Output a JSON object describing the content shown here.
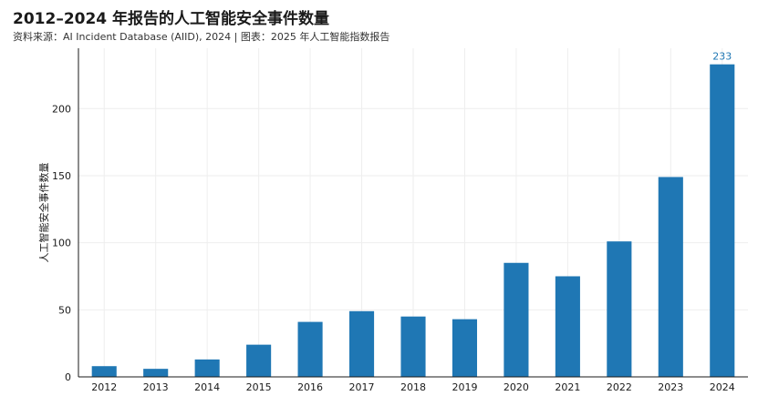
{
  "title": "2012–2024 年报告的人工智能安全事件数量",
  "subtitle": "资料来源：AI Incident Database (AIID), 2024 | 图表：2025 年人工智能指数报告",
  "chart_data": {
    "type": "bar",
    "categories": [
      "2012",
      "2013",
      "2014",
      "2015",
      "2016",
      "2017",
      "2018",
      "2019",
      "2020",
      "2021",
      "2022",
      "2023",
      "2024"
    ],
    "values": [
      8,
      6,
      13,
      24,
      41,
      49,
      45,
      43,
      85,
      75,
      101,
      149,
      233
    ],
    "ylabel": "人工智能安全事件数量",
    "xlabel": "",
    "ylim": [
      0,
      245
    ],
    "yticks": [
      0,
      50,
      100,
      150,
      200
    ],
    "data_labels": [
      {
        "category": "2024",
        "text": "233"
      }
    ],
    "grid": true,
    "colors": {
      "bar": "#1f77b4",
      "grid": "#eeeeee",
      "axis": "#1a1a1a",
      "data_label": "#1f77b4"
    }
  }
}
